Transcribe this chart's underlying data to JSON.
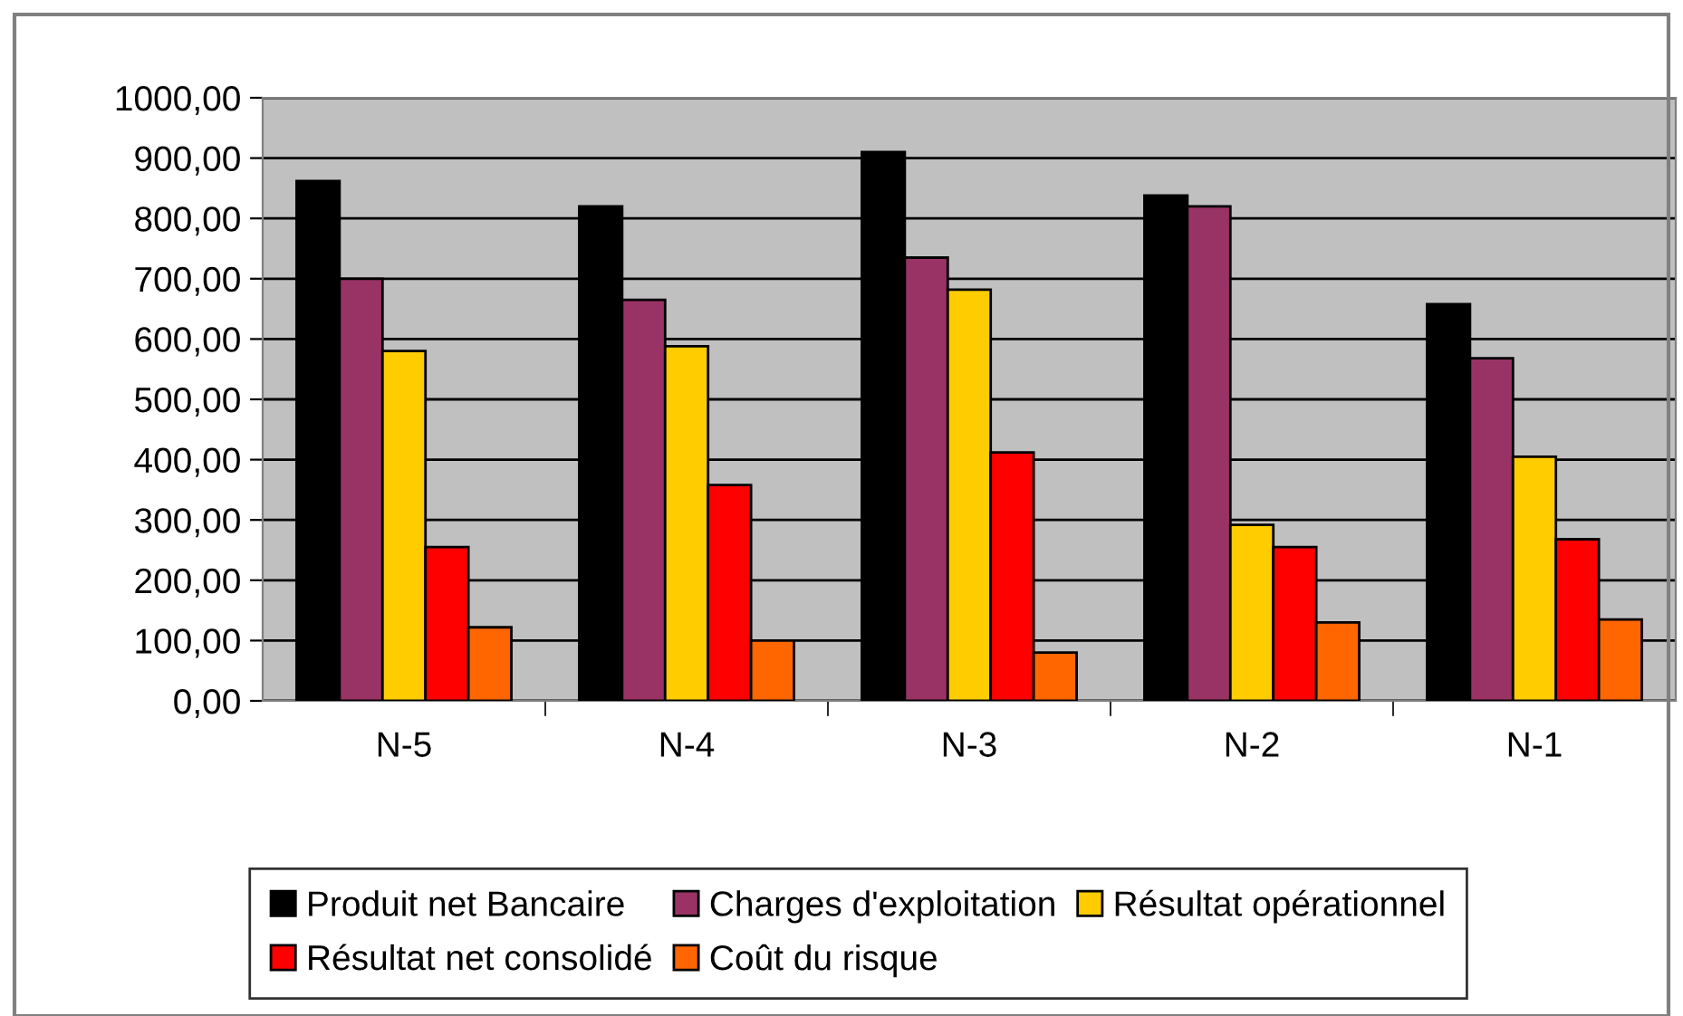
{
  "chart_data": {
    "type": "bar",
    "categories": [
      "N-5",
      "N-4",
      "N-3",
      "N-2",
      "N-1"
    ],
    "series": [
      {
        "name": "Produit net Bancaire",
        "color": "#000000",
        "values": [
          862,
          820,
          910,
          838,
          658
        ]
      },
      {
        "name": "Charges d'exploitation",
        "color": "#993366",
        "values": [
          700,
          665,
          735,
          820,
          568
        ]
      },
      {
        "name": "Résultat opérationnel",
        "color": "#ffcc00",
        "values": [
          580,
          588,
          682,
          292,
          405
        ]
      },
      {
        "name": "Résultat net consolidé",
        "color": "#ff0000",
        "values": [
          255,
          358,
          412,
          255,
          268
        ]
      },
      {
        "name": "Coût du risque",
        "color": "#ff6600",
        "values": [
          122,
          100,
          80,
          130,
          135
        ]
      }
    ],
    "ylim": [
      0,
      1000
    ],
    "yticks": [
      {
        "value": 0,
        "label": "0,00"
      },
      {
        "value": 100,
        "label": "100,00"
      },
      {
        "value": 200,
        "label": "200,00"
      },
      {
        "value": 300,
        "label": "300,00"
      },
      {
        "value": 400,
        "label": "400,00"
      },
      {
        "value": 500,
        "label": "500,00"
      },
      {
        "value": 600,
        "label": "600,00"
      },
      {
        "value": 700,
        "label": "700,00"
      },
      {
        "value": 800,
        "label": "800,00"
      },
      {
        "value": 900,
        "label": "900,00"
      },
      {
        "value": 1000,
        "label": "1000,00"
      }
    ],
    "grid": "y",
    "legend": "bottom"
  }
}
